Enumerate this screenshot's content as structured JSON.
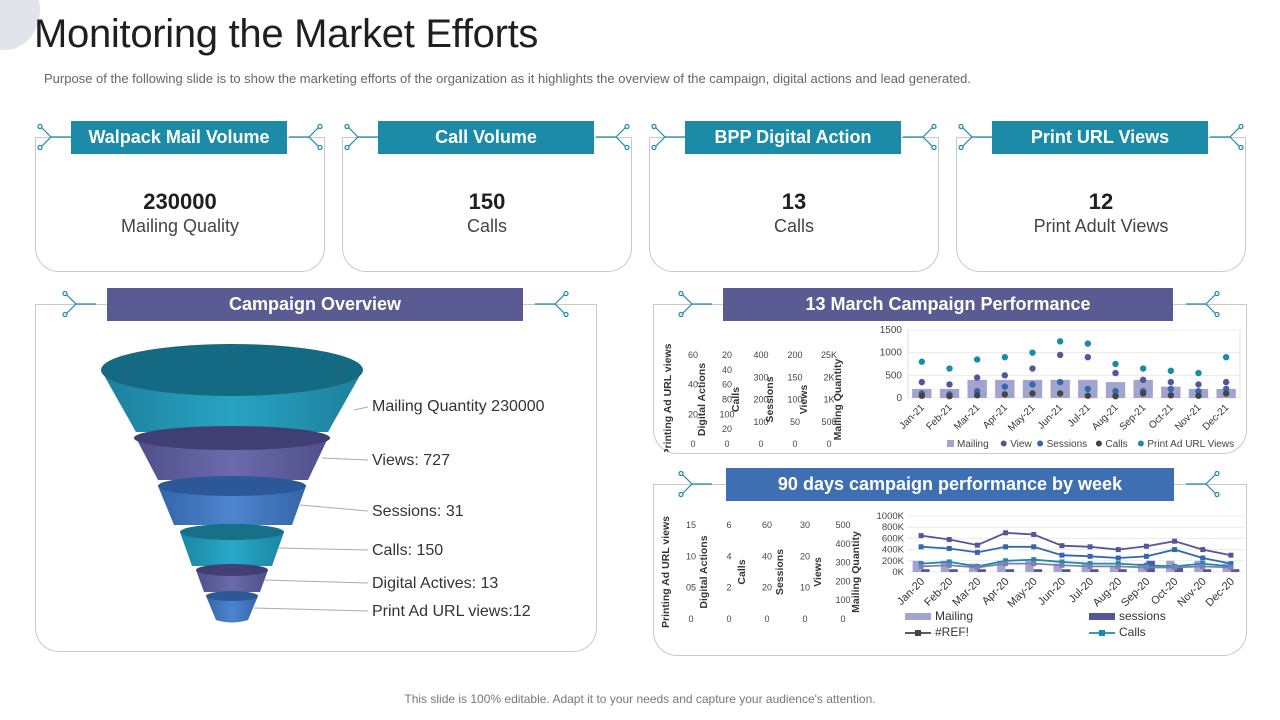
{
  "title": "Monitoring the Market Efforts",
  "subtitle": "Purpose of the following slide is to show the marketing efforts of the organization as it highlights the overview of the campaign, digital actions and lead generated.",
  "kpis": [
    {
      "header": "Walpack Mail Volume",
      "value": "230000",
      "label": "Mailing Quality"
    },
    {
      "header": "Call Volume",
      "value": "150",
      "label": "Calls"
    },
    {
      "header": "BPP Digital Action",
      "value": "13",
      "label": "Calls"
    },
    {
      "header": "Print URL Views",
      "value": "12",
      "label": "Print Adult Views"
    }
  ],
  "campaign_overview": {
    "header": "Campaign Overview",
    "labels": [
      "Mailing Quantity  230000",
      "Views: 727",
      "Sessions: 31",
      "Calls: 150",
      "Digital Actives: 13",
      "Print Ad URL views:12"
    ]
  },
  "march_panel": {
    "header": "13 March Campaign Performance"
  },
  "weekly_panel": {
    "header": "90 days campaign performance by week"
  },
  "footer": "This slide is 100% editable. Adapt it to your needs and capture your audience's attention.",
  "colors": {
    "teal": "#1b8ba8",
    "purple": "#5b5b93",
    "blue": "#3f6fb3"
  },
  "chart_data": [
    {
      "type": "bar",
      "title": "",
      "categories": [
        "Jan-21",
        "Feb-21",
        "Mar-21",
        "Apr-21",
        "May-21",
        "Jun-21",
        "Jul-21",
        "Aug-21",
        "Sep-21",
        "Oct-21",
        "Nov-21",
        "Dec-21"
      ],
      "ylim": [
        0,
        1500
      ],
      "yticks": [
        "1500",
        "1000",
        "500",
        "0"
      ],
      "series": [
        {
          "name": "Mailing",
          "kind": "bar",
          "values": [
            200,
            200,
            400,
            400,
            400,
            400,
            400,
            350,
            400,
            250,
            200,
            200
          ]
        },
        {
          "name": "View",
          "kind": "dot",
          "values": [
            350,
            300,
            450,
            500,
            650,
            950,
            900,
            550,
            400,
            350,
            300,
            350
          ]
        },
        {
          "name": "Sessions",
          "kind": "dot",
          "values": [
            100,
            80,
            150,
            250,
            300,
            350,
            200,
            150,
            150,
            200,
            150,
            200
          ]
        },
        {
          "name": "Calls",
          "kind": "dot",
          "values": [
            50,
            40,
            60,
            80,
            100,
            100,
            50,
            40,
            100,
            60,
            50,
            100
          ]
        },
        {
          "name": "Print Ad URL Views",
          "kind": "dot",
          "values": [
            800,
            650,
            850,
            900,
            1000,
            1250,
            1200,
            750,
            650,
            600,
            550,
            900
          ]
        }
      ],
      "secondary_axes": [
        {
          "label": "Printing Ad URL views",
          "ticks": [
            "60",
            "40",
            "20",
            "0"
          ]
        },
        {
          "label": "Digital Actions",
          "ticks": [
            "20",
            "40",
            "60",
            "80",
            "100",
            "20",
            "0"
          ]
        },
        {
          "label": "Calls",
          "ticks": [
            "400",
            "300",
            "200",
            "100",
            "0"
          ]
        },
        {
          "label": "Sessions",
          "ticks": [
            "200",
            "150",
            "100",
            "50",
            "0"
          ]
        },
        {
          "label": "Views",
          "ticks": [
            "25K",
            "2K",
            "1K",
            "500",
            "0"
          ]
        },
        {
          "label": "Mailing Quantity",
          "ticks": []
        }
      ]
    },
    {
      "type": "line",
      "title": "",
      "categories": [
        "Jan-20",
        "Feb-20",
        "Mar-20",
        "Apr-20",
        "May-20",
        "Jun-20",
        "Jul-20",
        "Aug-20",
        "Sep-20",
        "Oct-20",
        "Nov-20",
        "Dec-20"
      ],
      "ylim": [
        0,
        1000
      ],
      "yticks": [
        "1000K",
        "800K",
        "600K",
        "400K",
        "200K",
        "0K"
      ],
      "series": [
        {
          "name": "Mailing",
          "kind": "bar",
          "values": [
            200,
            200,
            150,
            200,
            200,
            150,
            150,
            100,
            150,
            200,
            200,
            150
          ]
        },
        {
          "name": "sessions",
          "kind": "bar",
          "values": [
            50,
            50,
            50,
            50,
            50,
            50,
            50,
            50,
            200,
            100,
            50,
            50
          ]
        },
        {
          "name": "#REF!",
          "kind": "line",
          "values": [
            650,
            580,
            480,
            700,
            670,
            470,
            450,
            400,
            460,
            550,
            400,
            300
          ]
        },
        {
          "name": "Calls",
          "kind": "line",
          "values": [
            450,
            420,
            350,
            450,
            450,
            300,
            280,
            250,
            280,
            400,
            250,
            150
          ]
        },
        {
          "name": "",
          "kind": "line",
          "values": [
            150,
            180,
            100,
            200,
            220,
            180,
            150,
            150,
            120,
            100,
            150,
            100
          ]
        },
        {
          "name": "",
          "kind": "line",
          "values": [
            100,
            120,
            80,
            150,
            150,
            120,
            100,
            100,
            80,
            80,
            100,
            80
          ]
        }
      ],
      "secondary_axes": [
        {
          "label": "Printing Ad URL views",
          "ticks": [
            "15",
            "10",
            "05",
            "0"
          ]
        },
        {
          "label": "Digital Actions",
          "ticks": [
            "6",
            "4",
            "2",
            "0"
          ]
        },
        {
          "label": "Calls",
          "ticks": [
            "60",
            "40",
            "20",
            "0"
          ]
        },
        {
          "label": "Sessions",
          "ticks": [
            "30",
            "20",
            "10",
            "0"
          ]
        },
        {
          "label": "Views",
          "ticks": [
            "500",
            "400",
            "300",
            "200",
            "100",
            "0"
          ]
        },
        {
          "label": "Mailing Quantity",
          "ticks": []
        }
      ]
    }
  ]
}
